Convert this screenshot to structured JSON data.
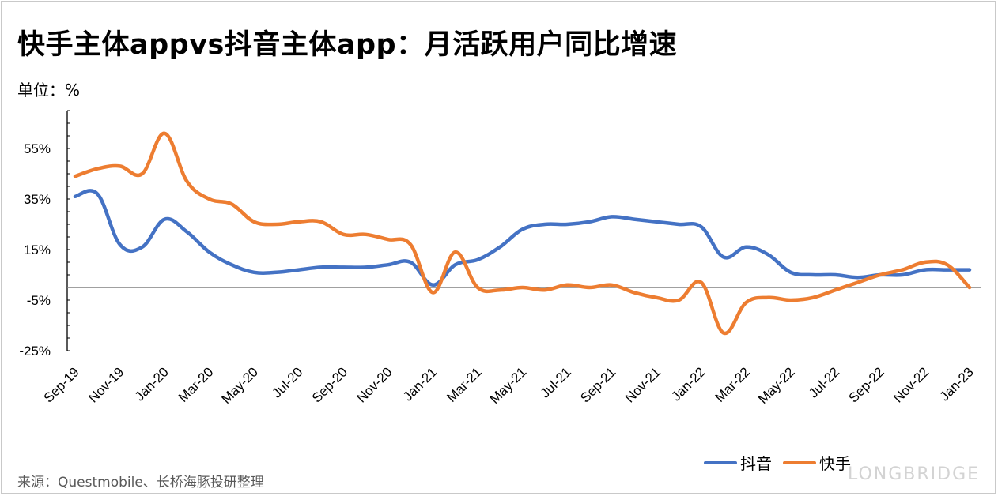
{
  "title": "快手主体appvs抖音主体app：月活跃用户同比增速",
  "unit_label": "单位：%",
  "source": "来源：Questmobile、长桥海豚投研整理",
  "brand": "LONGBRIDGE",
  "colors": {
    "douyin": "#4472C4",
    "kuaishou": "#ED7D31",
    "zero_line": "#808080",
    "axis": "#000000"
  },
  "chart_data": {
    "type": "line",
    "x_tick_labels": [
      "Sep-19",
      "Nov-19",
      "Jan-20",
      "Mar-20",
      "May-20",
      "Jul-20",
      "Sep-20",
      "Nov-20",
      "Jan-21",
      "Mar-21",
      "May-21",
      "Jul-21",
      "Sep-21",
      "Nov-21",
      "Jan-22",
      "Mar-22",
      "May-22",
      "Jul-22",
      "Sep-22",
      "Nov-22",
      "Jan-23"
    ],
    "x": [
      "Sep-19",
      "Oct-19",
      "Nov-19",
      "Dec-19",
      "Jan-20",
      "Feb-20",
      "Mar-20",
      "Apr-20",
      "May-20",
      "Jun-20",
      "Jul-20",
      "Aug-20",
      "Sep-20",
      "Oct-20",
      "Nov-20",
      "Dec-20",
      "Jan-21",
      "Feb-21",
      "Mar-21",
      "Apr-21",
      "May-21",
      "Jun-21",
      "Jul-21",
      "Aug-21",
      "Sep-21",
      "Oct-21",
      "Nov-21",
      "Dec-21",
      "Jan-22",
      "Feb-22",
      "Mar-22",
      "Apr-22",
      "May-22",
      "Jun-22",
      "Jul-22",
      "Aug-22",
      "Sep-22",
      "Oct-22",
      "Nov-22",
      "Dec-22",
      "Jan-23"
    ],
    "y_ticks": [
      55,
      35,
      15,
      -5,
      -25
    ],
    "y_tick_labels": [
      "55%",
      "35%",
      "15%",
      "-5%",
      "-25%"
    ],
    "ylim": [
      -25,
      70
    ],
    "series": [
      {
        "name": "抖音",
        "values": [
          36,
          37,
          17,
          16,
          27,
          22,
          14,
          9,
          6,
          6,
          7,
          8,
          8,
          8,
          9,
          10,
          1,
          9,
          11,
          16,
          23,
          25,
          25,
          26,
          28,
          27,
          26,
          25,
          24,
          12,
          16,
          13,
          6,
          5,
          5,
          4,
          5,
          5,
          7,
          7,
          7
        ]
      },
      {
        "name": "快手",
        "values": [
          44,
          47,
          48,
          45,
          61,
          42,
          35,
          33,
          26,
          25,
          26,
          26,
          21,
          21,
          19,
          17,
          -2,
          14,
          0,
          -1,
          0,
          -1,
          1,
          0,
          1,
          -2,
          -4,
          -5,
          2,
          -18,
          -6,
          -4,
          -5,
          -4,
          -1,
          2,
          5,
          7,
          10,
          9,
          0
        ]
      }
    ]
  }
}
